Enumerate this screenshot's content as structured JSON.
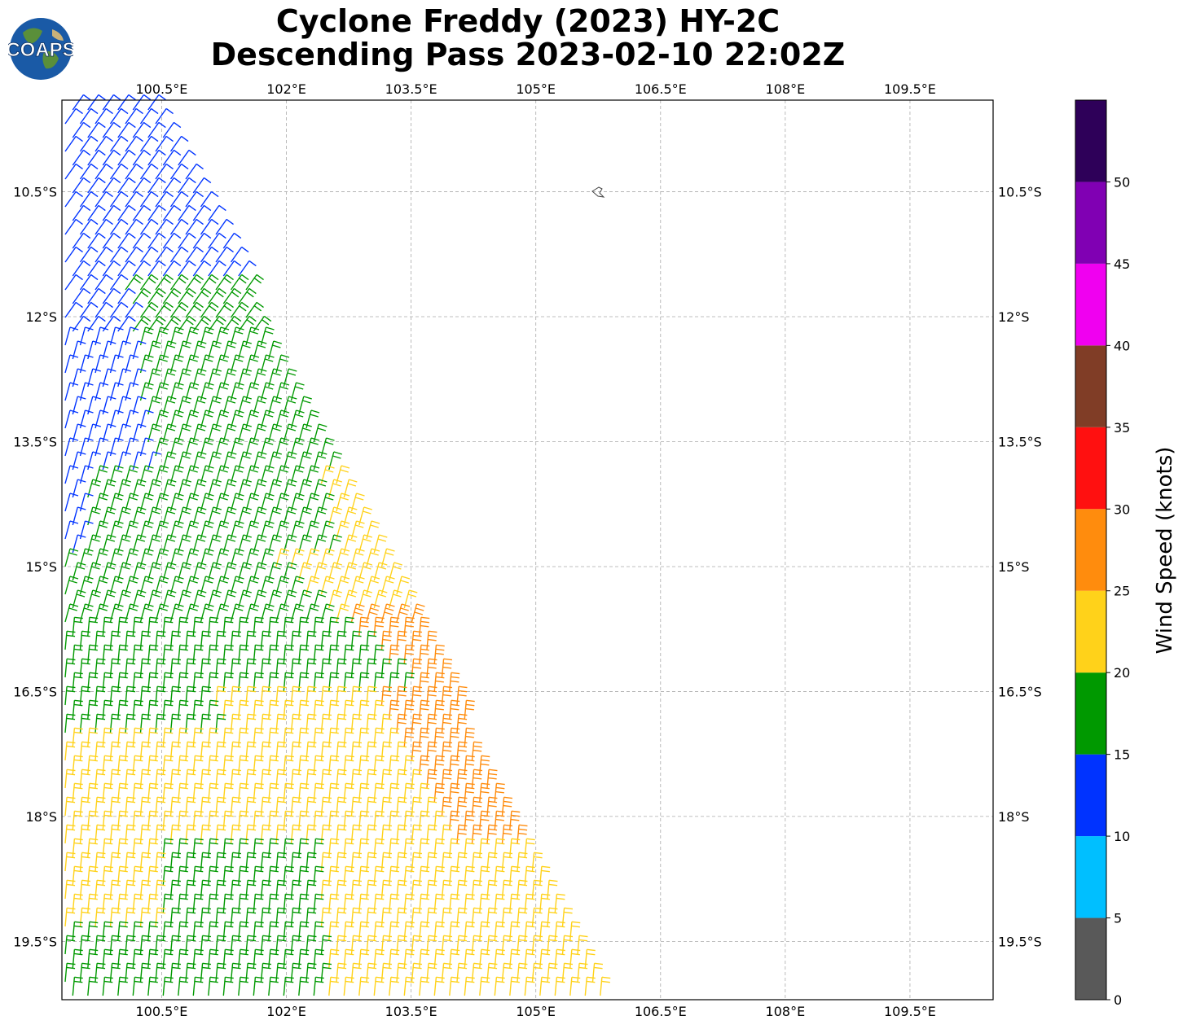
{
  "header": {
    "title_line1": "Cyclone Freddy (2023) HY-2C",
    "title_line2": "Descending Pass 2023-02-10 22:02Z",
    "logo_text": "COAPS"
  },
  "map": {
    "lon_range": [
      99.3,
      110.5
    ],
    "lat_range": [
      -20.2,
      -9.4
    ],
    "lon_ticks": [
      "100.5°E",
      "102°E",
      "103.5°E",
      "105°E",
      "106.5°E",
      "108°E",
      "109.5°E"
    ],
    "lat_ticks": [
      "10.5°S",
      "12°S",
      "13.5°S",
      "15°S",
      "16.5°S",
      "18°S",
      "19.5°S"
    ],
    "gridlines": true,
    "island": "Christmas Island",
    "swath_edge_lon": {
      "top": 100.4,
      "bottom": 105.9
    },
    "swath_left_lon": 99.3
  },
  "colorbar": {
    "label": "Wind Speed (knots)",
    "ticks": [
      "0",
      "5",
      "10",
      "15",
      "20",
      "25",
      "30",
      "35",
      "40",
      "45",
      "50"
    ],
    "bins": [
      {
        "min": 0,
        "max": 5,
        "color": "#595959"
      },
      {
        "min": 5,
        "max": 10,
        "color": "#00bfff"
      },
      {
        "min": 10,
        "max": 15,
        "color": "#0033ff"
      },
      {
        "min": 15,
        "max": 20,
        "color": "#009900"
      },
      {
        "min": 20,
        "max": 25,
        "color": "#ffd21a"
      },
      {
        "min": 25,
        "max": 30,
        "color": "#ff8c0d"
      },
      {
        "min": 30,
        "max": 35,
        "color": "#ff1010"
      },
      {
        "min": 35,
        "max": 40,
        "color": "#803d26"
      },
      {
        "min": 40,
        "max": 45,
        "color": "#f000f0"
      },
      {
        "min": 45,
        "max": 50,
        "color": "#8000b3"
      },
      {
        "min": 50,
        "max": 55,
        "color": "#2e0059"
      }
    ]
  }
}
